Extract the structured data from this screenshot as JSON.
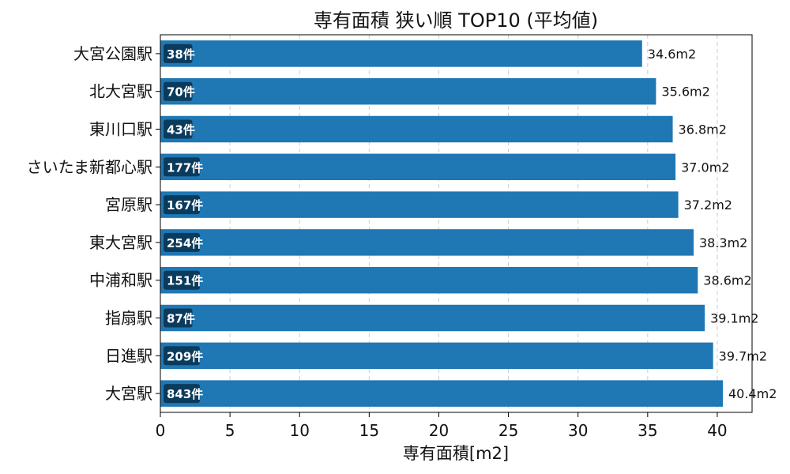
{
  "chart_data": {
    "type": "bar",
    "orientation": "horizontal",
    "title": "専有面積 狭い順 TOP10 (平均値)",
    "xlabel": "専有面積[m2]",
    "ylabel": "",
    "xlim": [
      0,
      42.5
    ],
    "xticks": [
      0,
      5,
      10,
      15,
      20,
      25,
      30,
      35,
      40
    ],
    "grid": "x-dashed",
    "colors": {
      "bar": "#1f77b4",
      "badge": "#0b3b5c"
    },
    "categories": [
      "大宮公園駅",
      "北大宮駅",
      "東川口駅",
      "さいたま新都心駅",
      "宮原駅",
      "東大宮駅",
      "中浦和駅",
      "指扇駅",
      "日進駅",
      "大宮駅"
    ],
    "values": [
      34.6,
      35.6,
      36.8,
      37.0,
      37.2,
      38.3,
      38.6,
      39.1,
      39.7,
      40.4
    ],
    "value_labels": [
      "34.6m2",
      "35.6m2",
      "36.8m2",
      "37.0m2",
      "37.2m2",
      "38.3m2",
      "38.6m2",
      "39.1m2",
      "39.7m2",
      "40.4m2"
    ],
    "count_labels": [
      "38件",
      "70件",
      "43件",
      "177件",
      "167件",
      "254件",
      "151件",
      "87件",
      "209件",
      "843件"
    ]
  }
}
